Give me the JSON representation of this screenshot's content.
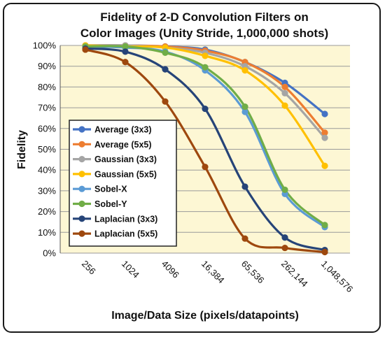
{
  "chart_data": {
    "type": "line",
    "title_line1": "Fidelity of 2-D Convolution Filters on",
    "title_line2": "Color Images (Unity Stride, 1,000,000 shots)",
    "xlabel": "Image/Data Size (pixels/datapoints)",
    "ylabel": "Fidelity",
    "categories": [
      "256",
      "1024",
      "4096",
      "16,384",
      "65,536",
      "262,144",
      "1,048,576"
    ],
    "y_ticks": [
      "0%",
      "10%",
      "20%",
      "30%",
      "40%",
      "50%",
      "60%",
      "70%",
      "80%",
      "90%",
      "100%"
    ],
    "ylim": [
      0,
      100
    ],
    "grid": true,
    "legend_position": "left-middle",
    "plot_background": "#fdf7d4",
    "series": [
      {
        "name": "Average (3x3)",
        "color": "#4472c4",
        "values": [
          100,
          100,
          99.5,
          98,
          92,
          82,
          67
        ]
      },
      {
        "name": "Average (5x5)",
        "color": "#ed7d31",
        "values": [
          100,
          100,
          99.5,
          97.5,
          92,
          80,
          58
        ]
      },
      {
        "name": "Gaussian (3x3)",
        "color": "#a5a5a5",
        "values": [
          100,
          100,
          99,
          96.5,
          90,
          77,
          55.5
        ]
      },
      {
        "name": "Gaussian (5x5)",
        "color": "#ffc000",
        "values": [
          100,
          99.5,
          99,
          95,
          88,
          71,
          42
        ]
      },
      {
        "name": "Sobel-X",
        "color": "#5b9bd5",
        "values": [
          99.5,
          99,
          97,
          88,
          68,
          28.5,
          12.5
        ]
      },
      {
        "name": "Sobel-Y",
        "color": "#70ad47",
        "values": [
          99.5,
          99.5,
          96.5,
          89.5,
          70.5,
          30.5,
          13.5
        ]
      },
      {
        "name": "Laplacian (3x3)",
        "color": "#264478",
        "values": [
          98.5,
          97,
          88.5,
          69.5,
          32,
          7.5,
          1.5
        ]
      },
      {
        "name": "Laplacian (5x5)",
        "color": "#9e480e",
        "values": [
          98,
          92,
          73,
          41.5,
          7,
          2.5,
          0.5
        ]
      }
    ]
  }
}
